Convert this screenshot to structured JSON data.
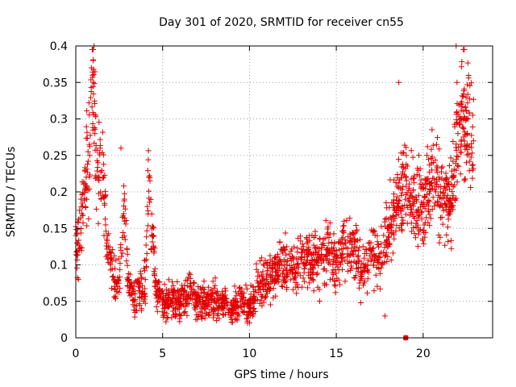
{
  "chart_data": {
    "type": "scatter",
    "title": "Day 301 of 2020, SRMTID for receiver cn55",
    "xlabel": "GPS time / hours",
    "ylabel": "SRMTID / TECUs",
    "xlim": [
      0,
      24
    ],
    "ylim": [
      0,
      0.4
    ],
    "xticks": [
      0,
      5,
      10,
      15,
      20
    ],
    "yticks": [
      0,
      0.05,
      0.1,
      0.15,
      0.2,
      0.25,
      0.3,
      0.35,
      0.4
    ],
    "xtick_labels": [
      "0",
      "5",
      "10",
      "15",
      "20"
    ],
    "ytick_labels": [
      "0",
      "0.05",
      "0.1",
      "0.15",
      "0.2",
      "0.25",
      "0.3",
      "0.35",
      "0.4"
    ],
    "grid": true,
    "marker": "+",
    "color": "#e00000",
    "series": [
      {
        "name": "SRMTID",
        "x": [
          0.0,
          0.2,
          0.4,
          0.6,
          0.8,
          0.9,
          1.0,
          1.1,
          1.2,
          1.4,
          1.6,
          1.8,
          2.0,
          2.2,
          2.4,
          2.6,
          2.8,
          3.0,
          3.2,
          3.4,
          3.6,
          3.8,
          4.0,
          4.2,
          4.4,
          4.6,
          4.8,
          5.0,
          5.5,
          6.0,
          6.5,
          7.0,
          7.5,
          8.0,
          8.5,
          9.0,
          9.5,
          10.0,
          10.5,
          11.0,
          11.5,
          12.0,
          12.5,
          13.0,
          13.5,
          14.0,
          14.5,
          15.0,
          15.5,
          16.0,
          16.5,
          17.0,
          17.5,
          18.0,
          18.5,
          19.0,
          19.5,
          20.0,
          20.5,
          21.0,
          21.5,
          22.0,
          22.5,
          22.9
        ],
        "y": [
          0.14,
          0.12,
          0.18,
          0.22,
          0.25,
          0.37,
          0.35,
          0.28,
          0.22,
          0.26,
          0.22,
          0.13,
          0.1,
          0.08,
          0.07,
          0.12,
          0.19,
          0.08,
          0.06,
          0.05,
          0.07,
          0.06,
          0.08,
          0.22,
          0.14,
          0.07,
          0.06,
          0.05,
          0.05,
          0.05,
          0.06,
          0.05,
          0.05,
          0.05,
          0.05,
          0.04,
          0.05,
          0.04,
          0.07,
          0.08,
          0.09,
          0.1,
          0.09,
          0.11,
          0.1,
          0.11,
          0.12,
          0.1,
          0.13,
          0.12,
          0.09,
          0.12,
          0.11,
          0.15,
          0.18,
          0.22,
          0.19,
          0.18,
          0.23,
          0.2,
          0.18,
          0.28,
          0.3,
          0.27
        ]
      }
    ],
    "outliers": [
      {
        "x": 0.15,
        "y": 0.08
      },
      {
        "x": 1.05,
        "y": 0.4
      },
      {
        "x": 1.0,
        "y": 0.38
      },
      {
        "x": 2.6,
        "y": 0.26
      },
      {
        "x": 18.6,
        "y": 0.35
      },
      {
        "x": 21.9,
        "y": 0.4
      },
      {
        "x": 21.95,
        "y": 0.35
      },
      {
        "x": 19.0,
        "y": 0.0
      },
      {
        "x": 17.8,
        "y": 0.03
      }
    ]
  }
}
